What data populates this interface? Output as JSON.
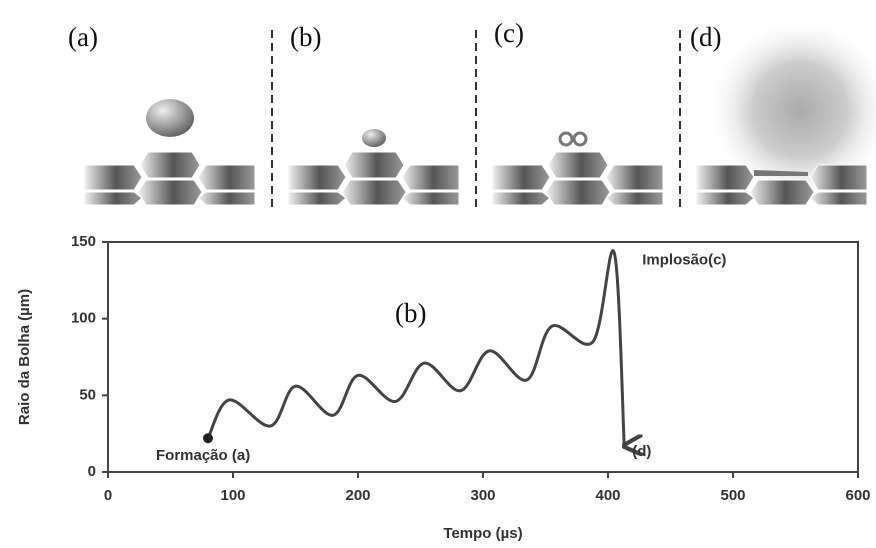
{
  "chart_data": {
    "type": "line",
    "panel_labels": [
      "(a)",
      "(b)",
      "(c)",
      "(d)"
    ],
    "x_label": "Tempo (µs)",
    "y_label": "Raio da Bolha (µm)",
    "annotations": {
      "start": "Formação (a)",
      "middle": "(b)",
      "peak": "Implosão(c)",
      "end": "(d)"
    },
    "x": [
      80,
      97,
      130,
      150,
      180,
      200,
      230,
      253,
      282,
      305,
      335,
      355,
      388,
      405,
      413
    ],
    "series": [
      {
        "name": "Raio da Bolha",
        "color": "#444444",
        "values": [
          22,
          47,
          30,
          56,
          37,
          63,
          46,
          71,
          53,
          79,
          60,
          95,
          85,
          143,
          17
        ]
      }
    ],
    "xlim": [
      0,
      600
    ],
    "xticks": [
      0,
      100,
      200,
      300,
      400,
      500,
      600
    ],
    "ylim": [
      0,
      150
    ],
    "yticks": [
      0,
      50,
      100,
      150
    ]
  }
}
